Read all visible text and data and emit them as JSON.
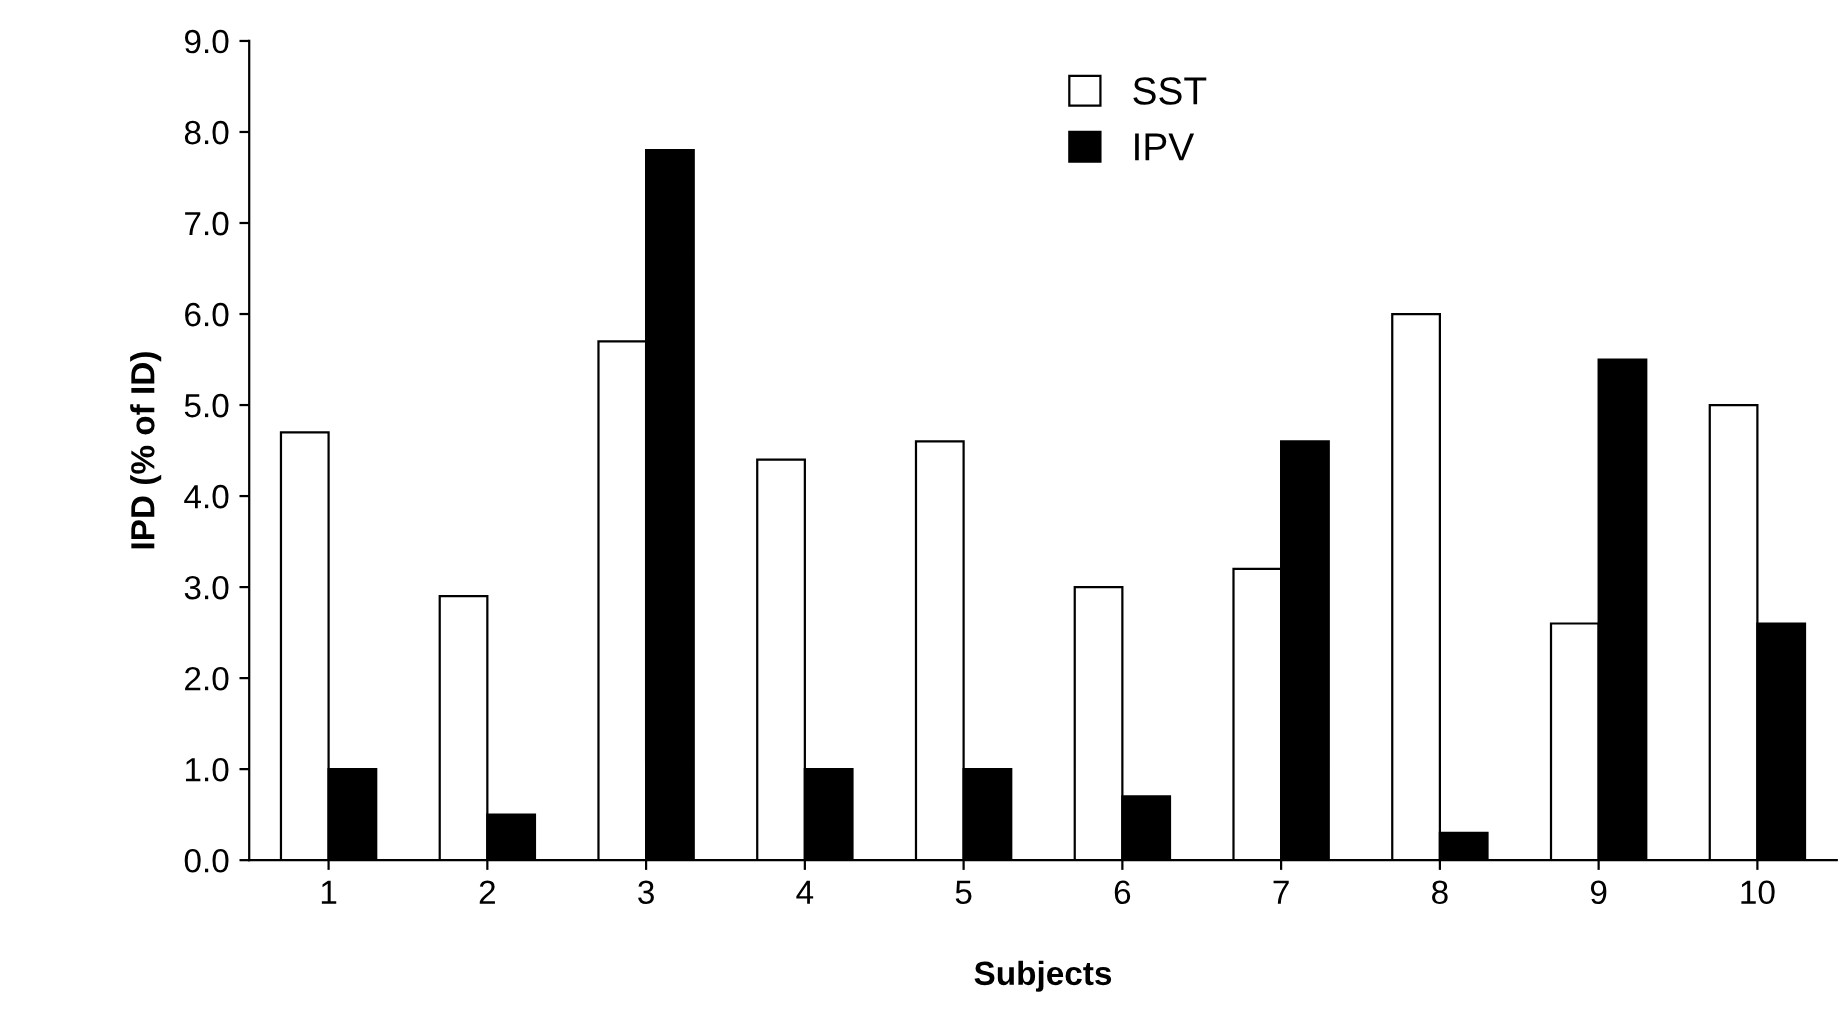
{
  "chart_data": {
    "type": "bar",
    "xlabel": "Subjects",
    "ylabel": "IPD (% of ID)",
    "categories": [
      "1",
      "2",
      "3",
      "4",
      "5",
      "6",
      "7",
      "8",
      "9",
      "10"
    ],
    "series": [
      {
        "name": "SST",
        "color": "#ffffff",
        "values": [
          4.7,
          2.9,
          5.7,
          4.4,
          4.6,
          3.0,
          3.2,
          6.0,
          2.6,
          5.0
        ]
      },
      {
        "name": "IPV",
        "color": "#000000",
        "values": [
          1.0,
          0.5,
          7.8,
          1.0,
          1.0,
          0.7,
          4.6,
          0.3,
          5.5,
          2.6
        ]
      }
    ],
    "ylim": [
      0,
      9
    ],
    "yticks": [
      {
        "value": 0,
        "label": "0.0"
      },
      {
        "value": 1,
        "label": "1.0"
      },
      {
        "value": 2,
        "label": "2.0"
      },
      {
        "value": 3,
        "label": "3.0"
      },
      {
        "value": 4,
        "label": "4.0"
      },
      {
        "value": 5,
        "label": "5.0"
      },
      {
        "value": 6,
        "label": "6.0"
      },
      {
        "value": 7,
        "label": "7.0"
      },
      {
        "value": 8,
        "label": "8.0"
      },
      {
        "value": 9,
        "label": "9.0"
      }
    ],
    "grid": false,
    "legend": "top"
  }
}
